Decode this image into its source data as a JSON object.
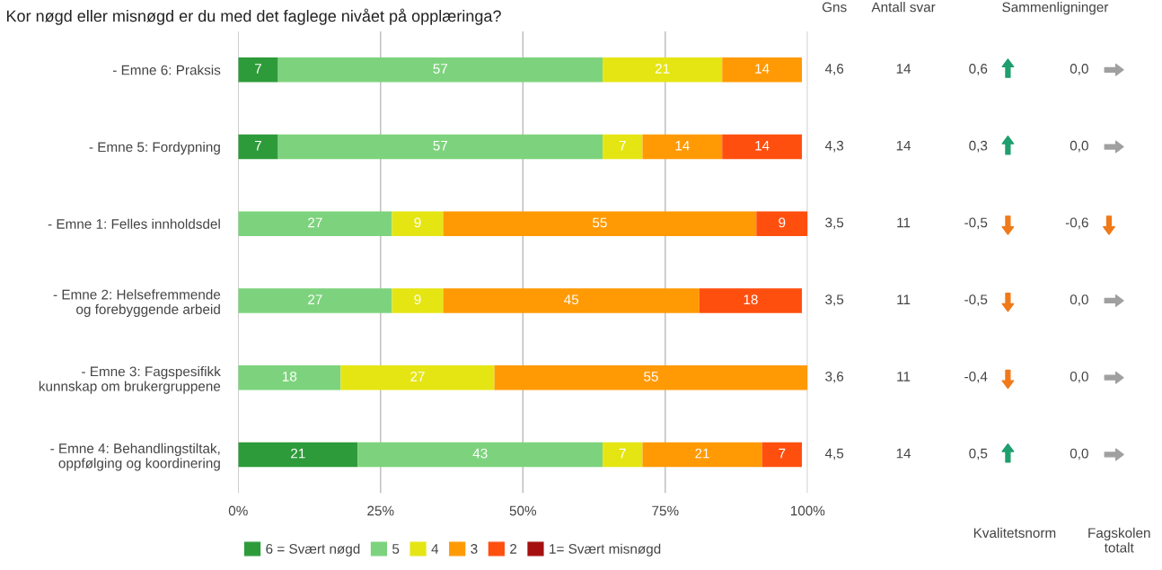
{
  "chart_data": [
    {
      "type": "bar",
      "orientation": "horizontal",
      "stacked": true,
      "title": "Kor nøgd eller misnøgd er du med det faglege nivået på opplæringa?",
      "categories": [
        "- Emne 6: Praksis",
        "- Emne 5: Fordypning",
        "- Emne 1: Felles innholdsdel",
        "- Emne 2: Helsefremmende\nog forebyggende arbeid",
        "- Emne 3: Fagspesifikk\nkunnskap om brukergruppene",
        "- Emne 4: Behandlingstiltak,\noppfølging og koordinering"
      ],
      "series": [
        {
          "name": "6 = Svært nøgd",
          "color": "#2e9b3a",
          "values": [
            7,
            7,
            0,
            0,
            0,
            21
          ],
          "value_labels": [
            "7",
            "7",
            null,
            null,
            null,
            "21"
          ]
        },
        {
          "name": "5",
          "color": "#7dd37d",
          "values": [
            57,
            57,
            27,
            27,
            18,
            43
          ],
          "value_labels": [
            "57",
            "57",
            "27",
            "27",
            "18",
            "43"
          ]
        },
        {
          "name": "4",
          "color": "#e5e514",
          "values": [
            21,
            7,
            9,
            9,
            27,
            7
          ],
          "value_labels": [
            "21",
            "7",
            "9",
            "9",
            "27",
            "7"
          ]
        },
        {
          "name": "3",
          "color": "#ff9a05",
          "values": [
            14,
            14,
            55,
            45,
            55,
            21
          ],
          "value_labels": [
            "14",
            "14",
            "55",
            "45",
            "55",
            "21"
          ]
        },
        {
          "name": "2",
          "color": "#ff4f0f",
          "values": [
            0,
            14,
            9,
            18,
            0,
            7
          ],
          "value_labels": [
            null,
            "14",
            "9",
            "18",
            null,
            "7"
          ]
        },
        {
          "name": "1= Svært misnøgd",
          "color": "#a50f0f",
          "values": [
            0,
            0,
            0,
            0,
            0,
            0
          ],
          "value_labels": [
            null,
            null,
            null,
            null,
            null,
            null
          ]
        }
      ],
      "xlim": [
        0,
        100
      ],
      "xticks": [
        {
          "value": 0,
          "label": "0%"
        },
        {
          "value": 25,
          "label": "25%"
        },
        {
          "value": 50,
          "label": "50%"
        },
        {
          "value": 75,
          "label": "75%"
        },
        {
          "value": 100,
          "label": "100%"
        }
      ],
      "grid": "x",
      "legend": "bottom left"
    },
    {
      "type": "other",
      "annotations": [
        "Gns",
        "Antall svar",
        "Sammenligninger",
        "Kvalitetsnorm",
        "Fagskolen\ntotalt",
        "4,6",
        "14",
        "0,6",
        "0,0",
        "4,3",
        "14",
        "0,3",
        "0,0",
        "3,5",
        "11",
        "-0,5",
        "-0,6",
        "3,5",
        "11",
        "-0,5",
        "0,0",
        "3,6",
        "11",
        "-0,4",
        "0,0",
        "4,5",
        "14",
        "0,5",
        "0,0"
      ]
    }
  ]
}
